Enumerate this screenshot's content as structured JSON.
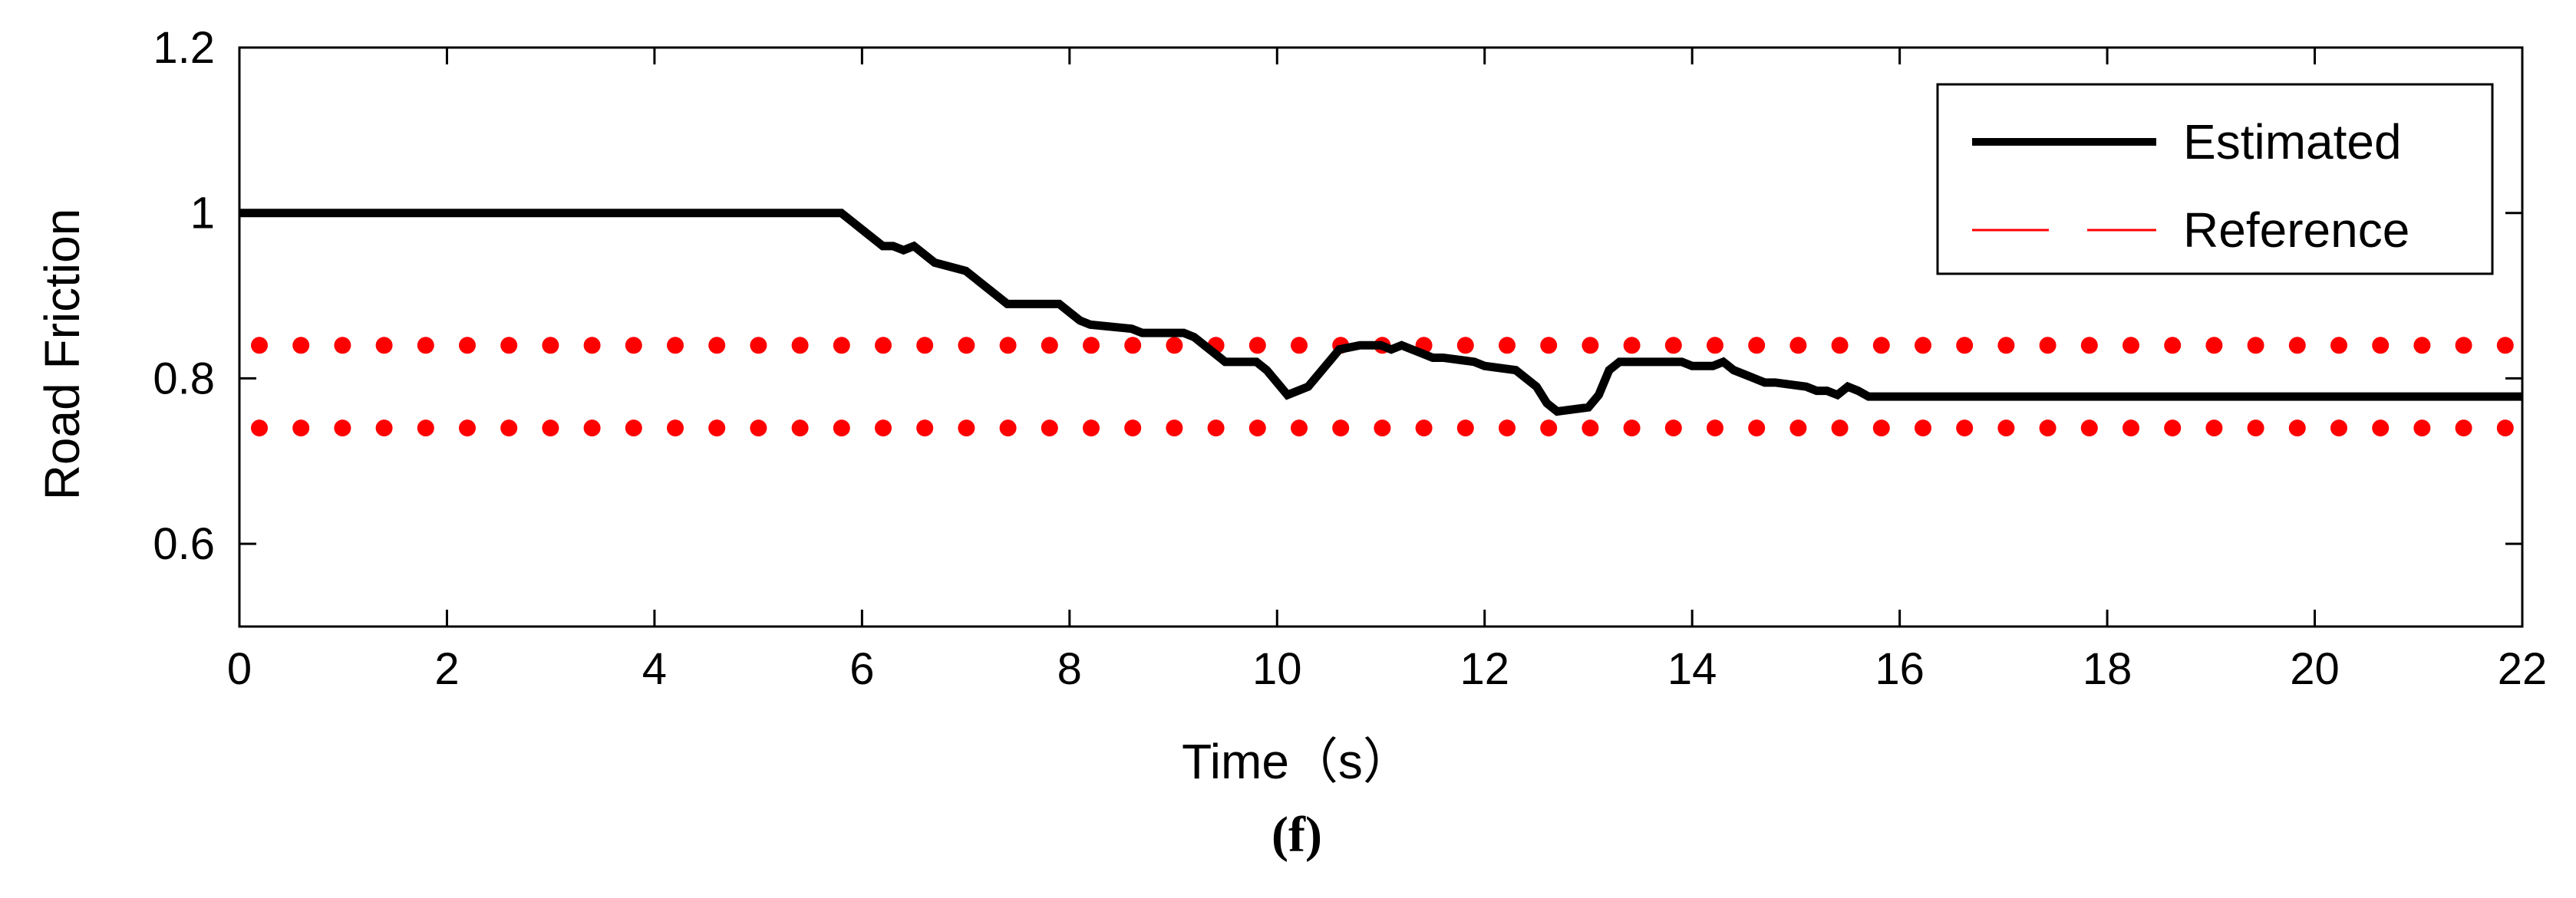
{
  "chart_data": {
    "type": "line",
    "xlabel": "Time（s）",
    "ylabel": "Road Friction",
    "caption": "(f)",
    "xlim": [
      0,
      22
    ],
    "ylim": [
      0.5,
      1.2
    ],
    "x_ticks": [
      0,
      2,
      4,
      6,
      8,
      10,
      12,
      14,
      16,
      18,
      20,
      22
    ],
    "x_tick_labels": [
      "0",
      "2",
      "4",
      "6",
      "8",
      "10",
      "12",
      "14",
      "16",
      "18",
      "20",
      "22"
    ],
    "y_ticks": [
      0.6,
      0.8,
      1.0,
      1.2
    ],
    "y_tick_labels": [
      "0.6",
      "0.8",
      "1",
      "1.2"
    ],
    "grid": false,
    "legend_position": "top-right",
    "series": [
      {
        "name": "Estimated",
        "color": "#000000",
        "style": "solid",
        "x": [
          0,
          5.8,
          5.9,
          6.0,
          6.1,
          6.2,
          6.3,
          6.4,
          6.5,
          6.6,
          6.7,
          7.0,
          7.1,
          7.2,
          7.3,
          7.4,
          7.9,
          8.0,
          8.1,
          8.2,
          8.6,
          8.7,
          9.1,
          9.2,
          9.3,
          9.4,
          9.5,
          9.8,
          9.9,
          10.0,
          10.1,
          10.3,
          10.5,
          10.6,
          10.8,
          11.0,
          11.1,
          11.2,
          11.3,
          11.4,
          11.5,
          11.6,
          11.9,
          12.0,
          12.3,
          12.4,
          12.5,
          12.6,
          12.7,
          13.0,
          13.1,
          13.2,
          13.3,
          13.9,
          14.0,
          14.2,
          14.3,
          14.4,
          14.5,
          14.6,
          14.7,
          14.8,
          15.1,
          15.2,
          15.3,
          15.4,
          15.5,
          15.6,
          15.7,
          22
        ],
        "values": [
          1.0,
          1.0,
          0.99,
          0.98,
          0.97,
          0.96,
          0.96,
          0.955,
          0.96,
          0.95,
          0.94,
          0.93,
          0.92,
          0.91,
          0.9,
          0.89,
          0.89,
          0.88,
          0.87,
          0.865,
          0.86,
          0.855,
          0.855,
          0.85,
          0.84,
          0.83,
          0.82,
          0.82,
          0.81,
          0.795,
          0.78,
          0.79,
          0.82,
          0.835,
          0.84,
          0.84,
          0.835,
          0.84,
          0.835,
          0.83,
          0.825,
          0.825,
          0.82,
          0.815,
          0.81,
          0.8,
          0.79,
          0.77,
          0.76,
          0.765,
          0.78,
          0.81,
          0.82,
          0.82,
          0.815,
          0.815,
          0.82,
          0.81,
          0.805,
          0.8,
          0.795,
          0.795,
          0.79,
          0.785,
          0.785,
          0.78,
          0.79,
          0.785,
          0.778,
          0.778
        ]
      },
      {
        "name": "Reference",
        "color": "#ff0000",
        "style": "dotted",
        "x": [
          0,
          22
        ],
        "values": [
          0.84,
          0.84
        ]
      },
      {
        "name": "",
        "color": "#ff0000",
        "style": "dotted",
        "x": [
          0,
          22
        ],
        "values": [
          0.74,
          0.74
        ]
      }
    ]
  }
}
